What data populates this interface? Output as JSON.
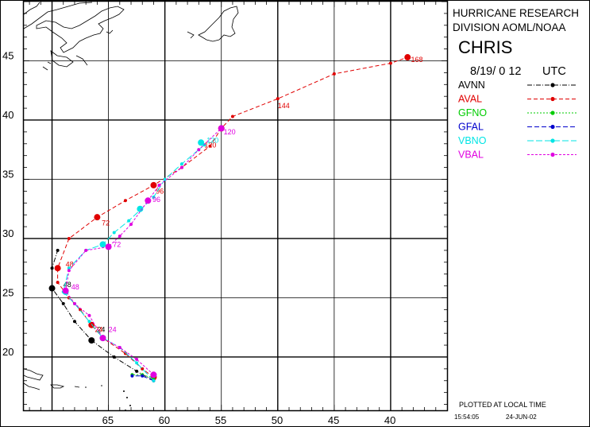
{
  "header": {
    "org_line1": "HURRICANE RESEARCH",
    "org_line2": "DIVISION AOML/NOAA",
    "storm_name": "CHRIS",
    "date_time": "8/19/ 0 12",
    "utc_label": "UTC"
  },
  "footer": {
    "plot_note": "PLOTTED AT LOCAL TIME",
    "time": "15:54:05",
    "date": "24-JUN-02"
  },
  "axes": {
    "lon_ticks": [
      65,
      60,
      55,
      50,
      45,
      40
    ],
    "lat_ticks": [
      20,
      25,
      30,
      35,
      40,
      45
    ],
    "lon_range_west": [
      72.5,
      35
    ],
    "lat_range": [
      15.5,
      50
    ]
  },
  "legend": [
    {
      "name": "AVNN",
      "color": "#000000",
      "dash": "6,2,1,2"
    },
    {
      "name": "AVAL",
      "color": "#e00000",
      "dash": "5,3"
    },
    {
      "name": "GFNO",
      "color": "#00cc00",
      "dash": "2,2"
    },
    {
      "name": "GFAL",
      "color": "#0000cc",
      "dash": "6,3"
    },
    {
      "name": "VBNO",
      "color": "#00e5e5",
      "dash": "8,3"
    },
    {
      "name": "VBAL",
      "color": "#e000e0",
      "dash": "3,2"
    }
  ],
  "chart_data": {
    "type": "map-track",
    "x_label_units": "longitude (degrees W)",
    "y_label_units": "latitude (degrees N)",
    "tracks": [
      {
        "name": "AVNN",
        "color": "#000000",
        "points": [
          [
            61.0,
            18.0
          ],
          [
            62.5,
            18.8
          ],
          [
            64.5,
            20.0
          ],
          [
            66.5,
            21.4
          ],
          [
            68.0,
            23.0
          ],
          [
            69.0,
            24.5
          ],
          [
            70.0,
            25.8
          ],
          [
            70.0,
            27.5
          ],
          [
            69.5,
            29.0
          ]
        ],
        "big": [
          [
            66.5,
            21.4
          ],
          [
            70.0,
            25.8
          ]
        ],
        "labels": [
          {
            "text": "24",
            "lon": 66.0,
            "lat": 22.1
          },
          {
            "text": "48",
            "lon": 69.0,
            "lat": 25.9
          }
        ]
      },
      {
        "name": "AVAL",
        "color": "#e00000",
        "points": [
          [
            61.0,
            18.3
          ],
          [
            62.0,
            19.0
          ],
          [
            63.5,
            20.3
          ],
          [
            65.5,
            21.6
          ],
          [
            66.5,
            22.7
          ],
          [
            67.5,
            24.0
          ],
          [
            68.5,
            25.0
          ],
          [
            69.5,
            26.3
          ],
          [
            69.5,
            27.5
          ],
          [
            68.5,
            30.0
          ],
          [
            66.0,
            31.8
          ],
          [
            63.5,
            33.2
          ],
          [
            61.0,
            34.5
          ],
          [
            58.5,
            36.0
          ],
          [
            56.0,
            37.8
          ],
          [
            55.0,
            39.3
          ],
          [
            54.0,
            40.3
          ],
          [
            50.0,
            41.8
          ],
          [
            45.0,
            43.9
          ],
          [
            40.0,
            44.8
          ],
          [
            38.5,
            45.3
          ]
        ],
        "big": [
          [
            61.0,
            18.3
          ],
          [
            66.5,
            22.7
          ],
          [
            69.5,
            27.5
          ],
          [
            66.0,
            31.8
          ],
          [
            61.0,
            34.5
          ],
          [
            55.0,
            39.3
          ],
          [
            38.5,
            45.3
          ]
        ],
        "labels": [
          {
            "text": "24",
            "lon": 66.2,
            "lat": 22.1
          },
          {
            "text": "48",
            "lon": 68.8,
            "lat": 27.6
          },
          {
            "text": "72",
            "lon": 65.6,
            "lat": 31.1
          },
          {
            "text": "96",
            "lon": 60.8,
            "lat": 33.8
          },
          {
            "text": "120",
            "lon": 56.5,
            "lat": 37.7
          },
          {
            "text": "144",
            "lon": 50.0,
            "lat": 41.0
          },
          {
            "text": "168",
            "lon": 38.2,
            "lat": 44.9
          }
        ]
      },
      {
        "name": "GFNO",
        "color": "#00cc00",
        "points": [
          [
            61.0,
            18.2
          ],
          [
            62.0,
            18.5
          ],
          [
            62.9,
            18.5
          ]
        ],
        "big": [],
        "labels": []
      },
      {
        "name": "GFAL",
        "color": "#0000cc",
        "points": [
          [
            61.0,
            18.0
          ],
          [
            62.0,
            18.4
          ],
          [
            62.9,
            18.4
          ]
        ],
        "big": [],
        "labels": []
      },
      {
        "name": "VBNO",
        "color": "#00e5e5",
        "points": [
          [
            61.0,
            18.0
          ],
          [
            62.5,
            19.5
          ],
          [
            64.0,
            20.8
          ],
          [
            65.5,
            21.6
          ],
          [
            66.7,
            23.0
          ],
          [
            68.0,
            24.5
          ],
          [
            69.0,
            25.5
          ],
          [
            68.5,
            27.5
          ],
          [
            67.0,
            29.0
          ],
          [
            65.5,
            29.5
          ],
          [
            64.5,
            30.5
          ],
          [
            63.2,
            31.5
          ],
          [
            62.2,
            32.4
          ],
          [
            61.0,
            33.5
          ],
          [
            60.0,
            35.0
          ],
          [
            58.5,
            36.3
          ],
          [
            57.0,
            37.5
          ],
          [
            56.5,
            37.9
          ]
        ],
        "big": [
          [
            65.5,
            21.6
          ],
          [
            68.8,
            25.5
          ],
          [
            65.5,
            29.5
          ],
          [
            62.2,
            32.5
          ],
          [
            56.8,
            38.1
          ]
        ],
        "labels": [
          {
            "text": "120",
            "lon": 56.3,
            "lat": 38.1
          }
        ]
      },
      {
        "name": "VBAL",
        "color": "#e000e0",
        "points": [
          [
            61.0,
            18.5
          ],
          [
            62.5,
            19.8
          ],
          [
            64.0,
            20.8
          ],
          [
            65.5,
            21.6
          ],
          [
            66.7,
            23.5
          ],
          [
            68.0,
            24.5
          ],
          [
            68.8,
            25.6
          ],
          [
            68.5,
            27.3
          ],
          [
            67.0,
            29.0
          ],
          [
            65.0,
            29.3
          ],
          [
            64.0,
            30.2
          ],
          [
            63.0,
            31.2
          ],
          [
            61.5,
            33.2
          ],
          [
            60.5,
            34.5
          ],
          [
            58.5,
            36.0
          ],
          [
            57.0,
            37.5
          ],
          [
            55.0,
            39.3
          ]
        ],
        "big": [
          [
            61.0,
            18.5
          ],
          [
            65.5,
            21.6
          ],
          [
            68.8,
            25.6
          ],
          [
            65.0,
            29.3
          ],
          [
            61.5,
            33.2
          ],
          [
            55.0,
            39.3
          ]
        ],
        "labels": [
          {
            "text": "24",
            "lon": 65.0,
            "lat": 22.1
          },
          {
            "text": "48",
            "lon": 68.3,
            "lat": 25.7
          },
          {
            "text": "72",
            "lon": 64.6,
            "lat": 29.3
          },
          {
            "text": "96",
            "lon": 61.1,
            "lat": 33.1
          },
          {
            "text": "120",
            "lon": 54.8,
            "lat": 38.8
          }
        ]
      }
    ]
  }
}
